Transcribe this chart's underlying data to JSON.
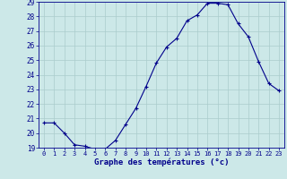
{
  "hours": [
    0,
    1,
    2,
    3,
    4,
    5,
    6,
    7,
    8,
    9,
    10,
    11,
    12,
    13,
    14,
    15,
    16,
    17,
    18,
    19,
    20,
    21,
    22,
    23
  ],
  "temps": [
    20.7,
    20.7,
    20.0,
    19.2,
    19.1,
    18.9,
    18.9,
    19.5,
    20.6,
    21.7,
    23.2,
    24.8,
    25.9,
    26.5,
    27.7,
    28.1,
    28.9,
    28.9,
    28.8,
    27.5,
    26.6,
    24.9,
    23.4,
    22.9
  ],
  "ylim": [
    19,
    29
  ],
  "yticks": [
    19,
    20,
    21,
    22,
    23,
    24,
    25,
    26,
    27,
    28,
    29
  ],
  "line_color": "#00008b",
  "marker": "+",
  "marker_size": 3,
  "bg_color": "#cce8e8",
  "grid_color": "#aacccc",
  "xlabel": "Graphe des températures (°c)",
  "xlabel_color": "#00008b",
  "tick_color": "#00008b",
  "figsize": [
    3.2,
    2.0
  ],
  "dpi": 100
}
